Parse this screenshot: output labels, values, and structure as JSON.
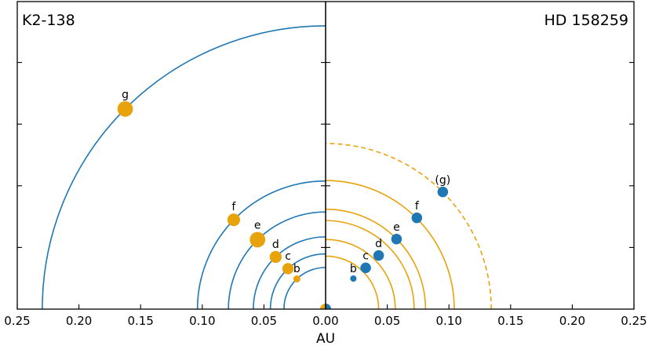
{
  "chart_data": {
    "type": "scatter",
    "xlabel": "AU",
    "xlim": [
      -0.25,
      0.25
    ],
    "x_tick_labels": [
      "0.25",
      "0.20",
      "0.15",
      "0.10",
      "0.05",
      "0.00",
      "0.05",
      "0.10",
      "0.15",
      "0.20",
      "0.25"
    ],
    "x_tick_values": [
      -0.25,
      -0.2,
      -0.15,
      -0.1,
      -0.05,
      0.0,
      0.05,
      0.1,
      0.15,
      0.2,
      0.25
    ],
    "panels": [
      {
        "title": "K2-138",
        "side": "left",
        "orbit_color": "#1f77b4",
        "planet_color": "#e8a20c",
        "orbits": [
          {
            "label": "b",
            "radius_au": 0.0338
          },
          {
            "label": "c",
            "radius_au": 0.0448
          },
          {
            "label": "d",
            "radius_au": 0.0586
          },
          {
            "label": "e",
            "radius_au": 0.0788
          },
          {
            "label": "f",
            "radius_au": 0.1039
          },
          {
            "label": "g",
            "radius_au": 0.2297
          }
        ],
        "planets": [
          {
            "label": "b",
            "x": -0.0233,
            "y": 0.0245,
            "size": 1.0
          },
          {
            "label": "c",
            "x": -0.0305,
            "y": 0.0328,
            "size": 1.6
          },
          {
            "label": "d",
            "x": -0.0405,
            "y": 0.0423,
            "size": 1.7
          },
          {
            "label": "e",
            "x": -0.0552,
            "y": 0.0563,
            "size": 2.2
          },
          {
            "label": "f",
            "x": -0.0745,
            "y": 0.0724,
            "size": 1.8
          },
          {
            "label": "g",
            "x": -0.1625,
            "y": 0.1623,
            "size": 2.2
          }
        ],
        "star": {
          "x": 0.0,
          "y": 0.0
        }
      },
      {
        "title": "HD 158259",
        "side": "right",
        "orbit_color": "#e8a20c",
        "planet_color": "#1f77b4",
        "orbits": [
          {
            "label": "b",
            "radius_au": 0.043,
            "dashed": false
          },
          {
            "label": "c",
            "radius_au": 0.0565,
            "dashed": false
          },
          {
            "label": "d",
            "radius_au": 0.0718,
            "dashed": false
          },
          {
            "label": "e",
            "radius_au": 0.081,
            "dashed": false
          },
          {
            "label": "f",
            "radius_au": 0.1043,
            "dashed": false
          },
          {
            "label": "(g)",
            "radius_au": 0.1343,
            "dashed": true
          }
        ],
        "planets": [
          {
            "label": "b",
            "x": 0.0225,
            "y": 0.0248,
            "size": 0.9
          },
          {
            "label": "c",
            "x": 0.0325,
            "y": 0.0335,
            "size": 1.5
          },
          {
            "label": "d",
            "x": 0.043,
            "y": 0.0435,
            "size": 1.5
          },
          {
            "label": "e",
            "x": 0.0575,
            "y": 0.0568,
            "size": 1.5
          },
          {
            "label": "f",
            "x": 0.074,
            "y": 0.074,
            "size": 1.5
          },
          {
            "label": "(g)",
            "x": 0.095,
            "y": 0.095,
            "size": 1.5
          }
        ],
        "star": {
          "x": 0.0,
          "y": 0.0
        }
      }
    ],
    "ylim": [
      0,
      0.2297
    ],
    "y_tick_count": 4,
    "grid": false,
    "legend": "none"
  }
}
